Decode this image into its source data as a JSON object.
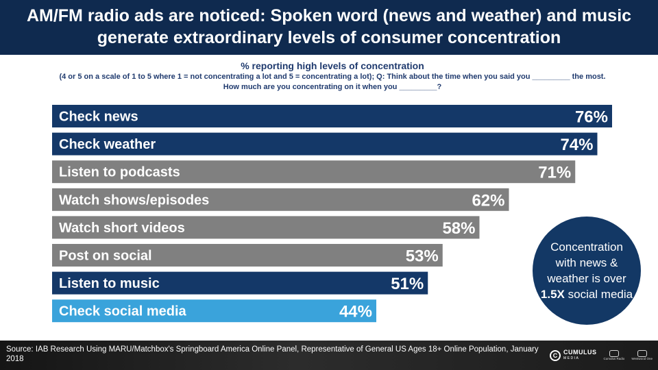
{
  "header": {
    "title": "AM/FM radio ads are noticed: Spoken word (news and weather) and music generate extraordinary levels of consumer concentration"
  },
  "chart_data": {
    "type": "bar",
    "orientation": "horizontal",
    "subtitle": "% reporting high levels of concentration",
    "note": "(4 or 5 on a scale of 1 to 5 where 1 = not concentrating a lot and 5 = concentrating a lot); Q: Think about the time when you said you _________ the most. How much are you concentrating on it when you _________?",
    "categories": [
      "Check news",
      "Check weather",
      "Listen to podcasts",
      "Watch shows/episodes",
      "Watch short videos",
      "Post on social",
      "Listen to music",
      "Check social media"
    ],
    "values": [
      76,
      74,
      71,
      62,
      58,
      53,
      51,
      44
    ],
    "value_labels": [
      "76%",
      "74%",
      "71%",
      "62%",
      "58%",
      "53%",
      "51%",
      "44%"
    ],
    "bar_colors": [
      "#143868",
      "#143868",
      "#808080",
      "#808080",
      "#808080",
      "#808080",
      "#143868",
      "#3aa3db"
    ],
    "xlim": [
      0,
      76
    ],
    "grid": false,
    "legend": "none"
  },
  "callout": {
    "line1": "Concentration with news & weather is over",
    "emphasis": "1.5X",
    "line2": "social media"
  },
  "footer": {
    "source": "Source: IAB Research Using MARU/Matchbox's Springboard America Online Panel, Representative of General US Ages 18+ Online Population, January 2018",
    "logos": {
      "cumulus": "CUMULUS",
      "cumulus_sub": "MEDIA",
      "radio": "Cumulus Radio",
      "westwood": "Westwood One"
    }
  }
}
